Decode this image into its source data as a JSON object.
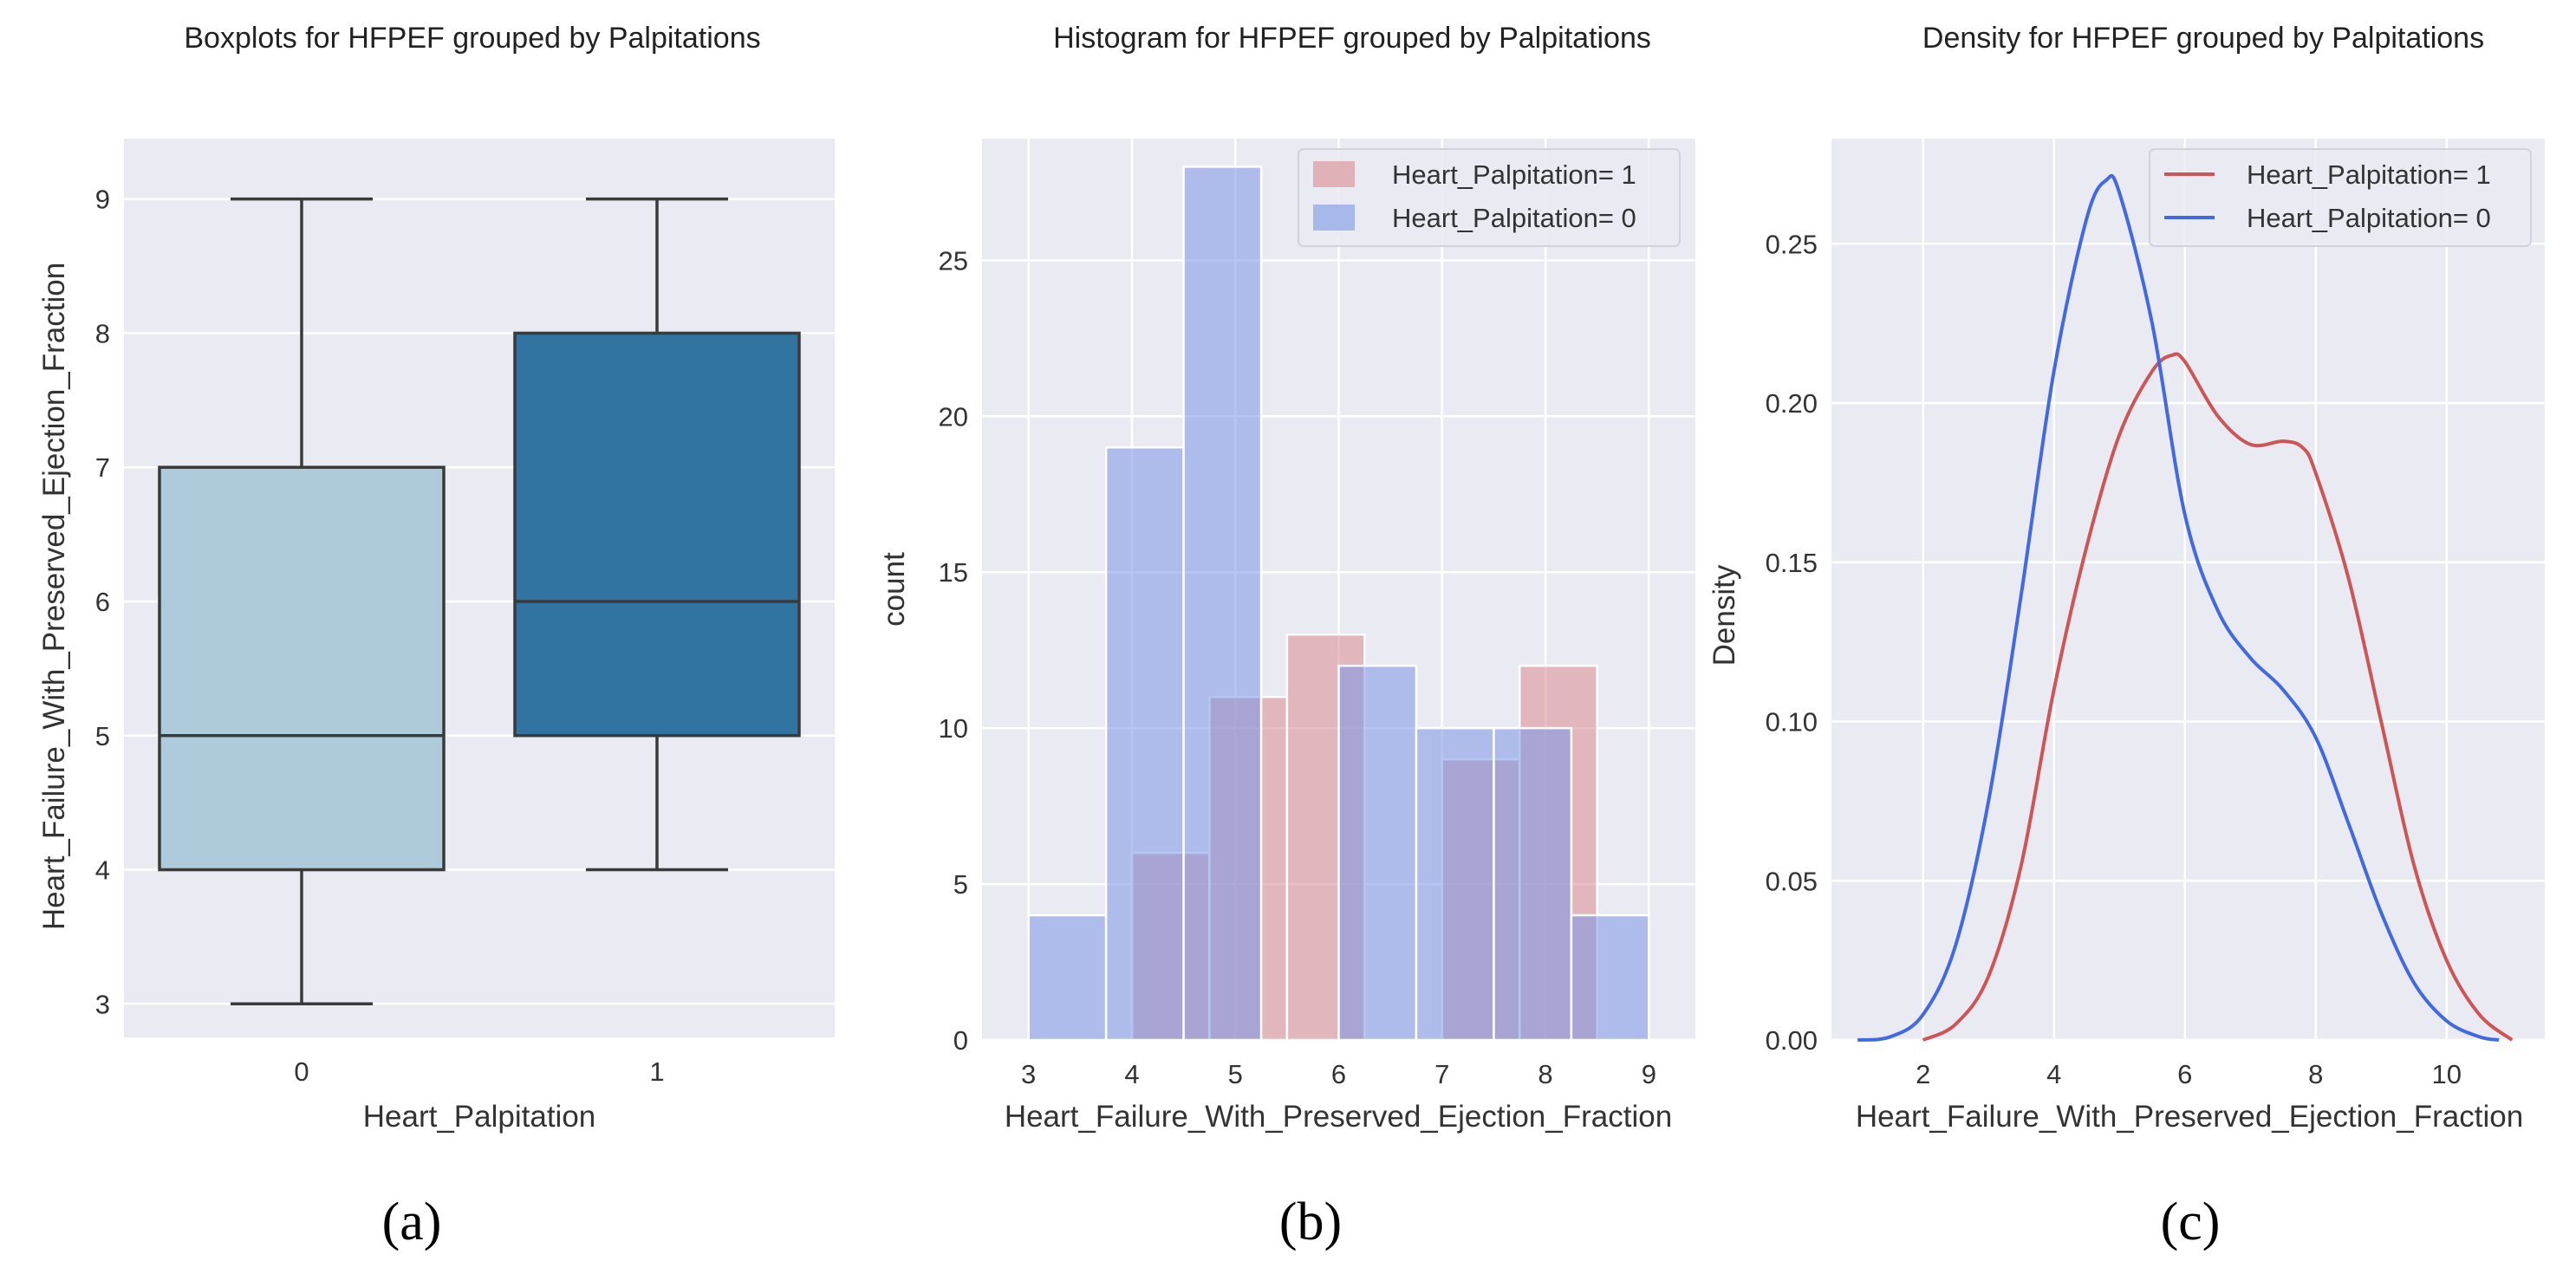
{
  "panels": {
    "a": {
      "label": "(a)"
    },
    "b": {
      "label": "(b)"
    },
    "c": {
      "label": "(c)"
    }
  },
  "colors": {
    "plot_bg": "#EAEAF2",
    "grid": "#FFFFFF",
    "box0": "#AECBDC",
    "box1": "#3174A1",
    "box_line": "#3A3A3A",
    "hist1": "#D98C91",
    "hist0": "#7A96E6",
    "kde1": "#CD5555",
    "kde0": "#4169E1"
  },
  "chart_data": [
    {
      "type": "box",
      "title": "Boxplots for HFPEF grouped by Palpitations",
      "xlabel": "Heart_Palpitation",
      "ylabel": "Heart_Failure_With_Preserved_Ejection_Fraction",
      "ylim": [
        2.75,
        9.45
      ],
      "yticks": [
        "3",
        "4",
        "5",
        "6",
        "7",
        "8",
        "9"
      ],
      "categories": [
        "0",
        "1"
      ],
      "boxes": [
        {
          "category": "0",
          "min": 3,
          "q1": 4,
          "median": 5,
          "q3": 7,
          "max": 9
        },
        {
          "category": "1",
          "min": 4,
          "q1": 5,
          "median": 6,
          "q3": 8,
          "max": 9
        }
      ]
    },
    {
      "type": "histogram",
      "title": "Histogram for HFPEF grouped by Palpitations",
      "xlabel": "Heart_Failure_With_Preserved_Ejection_Fraction",
      "ylabel": "count",
      "xlim": [
        2.55,
        9.45
      ],
      "ylim": [
        0,
        28.9
      ],
      "xticks": [
        "3",
        "4",
        "5",
        "6",
        "7",
        "8",
        "9"
      ],
      "yticks": [
        "0",
        "5",
        "10",
        "15",
        "20",
        "25"
      ],
      "legend": [
        "Heart_Palpitation= 1",
        "Heart_Palpitation= 0"
      ],
      "series": [
        {
          "name": "Heart_Palpitation= 1",
          "bins": [
            {
              "x0": 4.0,
              "x1": 4.75,
              "count": 6
            },
            {
              "x0": 4.75,
              "x1": 5.5,
              "count": 11
            },
            {
              "x0": 5.5,
              "x1": 6.25,
              "count": 13
            },
            {
              "x0": 6.25,
              "x1": 7.0,
              "count": 0
            },
            {
              "x0": 7.0,
              "x1": 7.75,
              "count": 9
            },
            {
              "x0": 7.75,
              "x1": 8.5,
              "count": 12
            }
          ]
        },
        {
          "name": "Heart_Palpitation= 0",
          "bins": [
            {
              "x0": 3.0,
              "x1": 3.75,
              "count": 4
            },
            {
              "x0": 3.75,
              "x1": 4.5,
              "count": 19
            },
            {
              "x0": 4.5,
              "x1": 5.25,
              "count": 28
            },
            {
              "x0": 5.25,
              "x1": 6.0,
              "count": 0
            },
            {
              "x0": 6.0,
              "x1": 6.75,
              "count": 12
            },
            {
              "x0": 6.75,
              "x1": 7.5,
              "count": 10
            },
            {
              "x0": 7.5,
              "x1": 8.25,
              "count": 10
            },
            {
              "x0": 8.25,
              "x1": 9.0,
              "count": 4
            }
          ]
        }
      ]
    },
    {
      "type": "line",
      "title": "Density for HFPEF grouped by Palpitations",
      "xlabel": "Heart_Failure_With_Preserved_Ejection_Fraction",
      "ylabel": "Density",
      "xlim": [
        0.6,
        11.5
      ],
      "ylim": [
        0,
        0.283
      ],
      "xticks": [
        "2",
        "4",
        "6",
        "8",
        "10"
      ],
      "yticks": [
        "0.00",
        "0.05",
        "0.10",
        "0.15",
        "0.20",
        "0.25"
      ],
      "legend": [
        "Heart_Palpitation= 1",
        "Heart_Palpitation= 0"
      ],
      "series": [
        {
          "name": "Heart_Palpitation= 1",
          "x": [
            2.0,
            2.5,
            3.0,
            3.5,
            4.0,
            4.5,
            5.0,
            5.5,
            5.8,
            6.0,
            6.5,
            7.0,
            7.5,
            7.8,
            8.0,
            8.5,
            9.0,
            9.5,
            10.0,
            10.5,
            11.0
          ],
          "y": [
            0.0,
            0.005,
            0.02,
            0.055,
            0.11,
            0.155,
            0.19,
            0.21,
            0.215,
            0.213,
            0.196,
            0.187,
            0.188,
            0.186,
            0.178,
            0.145,
            0.1,
            0.055,
            0.025,
            0.008,
            0.0
          ]
        },
        {
          "name": "Heart_Palpitation= 0",
          "x": [
            1.0,
            1.5,
            2.0,
            2.5,
            3.0,
            3.5,
            4.0,
            4.5,
            4.8,
            5.0,
            5.5,
            6.0,
            6.5,
            7.0,
            7.5,
            8.0,
            8.5,
            9.0,
            9.5,
            10.0,
            10.5,
            10.8
          ],
          "y": [
            0.0,
            0.001,
            0.008,
            0.03,
            0.075,
            0.14,
            0.21,
            0.258,
            0.27,
            0.266,
            0.225,
            0.165,
            0.135,
            0.12,
            0.11,
            0.095,
            0.068,
            0.04,
            0.018,
            0.006,
            0.001,
            0.0
          ]
        }
      ]
    }
  ]
}
